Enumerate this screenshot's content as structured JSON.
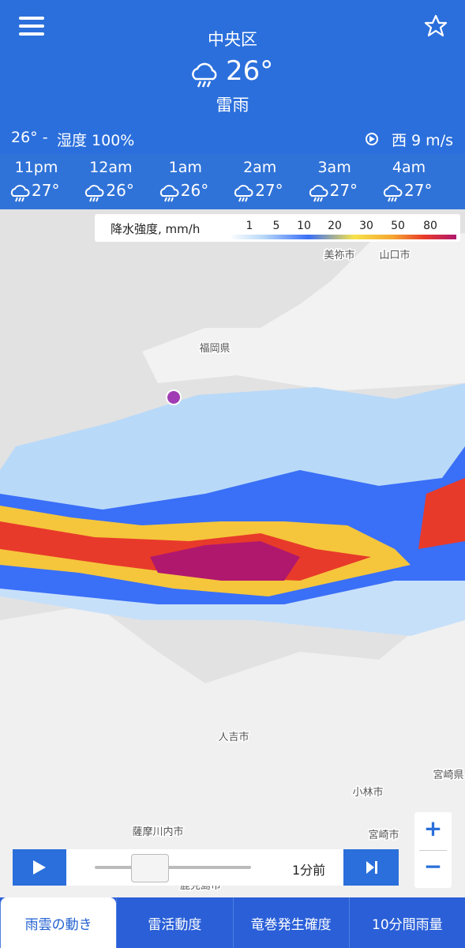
{
  "header": {
    "location": "中央区",
    "temperature": "26°",
    "condition": "雷雨"
  },
  "summary": {
    "temperature_range": "26° -",
    "humidity": "湿度 100%",
    "wind": "西 9 m/s"
  },
  "hourly": [
    {
      "time": "11pm",
      "temp": "27°"
    },
    {
      "time": "12am",
      "temp": "26°"
    },
    {
      "time": "1am",
      "temp": "26°"
    },
    {
      "time": "2am",
      "temp": "27°"
    },
    {
      "time": "3am",
      "temp": "27°"
    },
    {
      "time": "4am",
      "temp": "27°"
    }
  ],
  "legend": {
    "title": "降水強度, mm/h",
    "labels": [
      1,
      5,
      10,
      20,
      30,
      50,
      80
    ]
  },
  "map_labels": [
    "美祢市",
    "山口市",
    "福岡県",
    "人吉市",
    "宮崎県",
    "小林市",
    "宮崎市",
    "薩摩川内市",
    "鹿児島市"
  ],
  "player": {
    "time": "1分前"
  },
  "zoom": {
    "in": "+",
    "out": "−"
  },
  "tabs": [
    "雨雲の動き",
    "雷活動度",
    "竜巻発生確度",
    "10分間雨量"
  ]
}
